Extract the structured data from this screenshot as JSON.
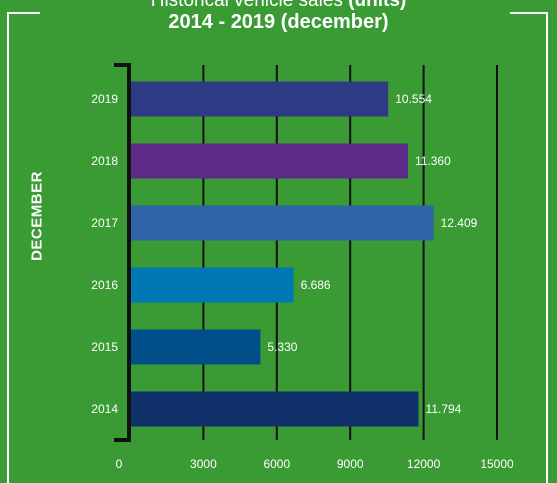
{
  "colors": {
    "background": "#3a9b35",
    "axis": "#111111",
    "frame": "#ffffff",
    "text": "#ffffff"
  },
  "chart_data": {
    "type": "bar",
    "orientation": "horizontal",
    "title": "Historical vehicle sales",
    "title_units": "(units)",
    "subtitle": "2014 - 2019 (december)",
    "ylabel": "DECEMBER",
    "xlabel": "",
    "categories": [
      "2019",
      "2018",
      "2017",
      "2016",
      "2015",
      "2014"
    ],
    "values": [
      10554,
      11360,
      12409,
      6686,
      5330,
      11794
    ],
    "value_labels": [
      "10.554",
      "11.360",
      "12.409",
      "6.686",
      "5.330",
      "11.794"
    ],
    "bar_colors": [
      "#2e3a84",
      "#5b2b87",
      "#2f64a8",
      "#0078b3",
      "#014f8a",
      "#0f3068"
    ],
    "xlim": [
      0,
      15000
    ],
    "xticks": [
      0,
      3000,
      6000,
      9000,
      12000,
      15000
    ],
    "xtick_labels": [
      "0",
      "3000",
      "6000",
      "9000",
      "12000",
      "15000"
    ],
    "grid": true,
    "legend": "none"
  }
}
